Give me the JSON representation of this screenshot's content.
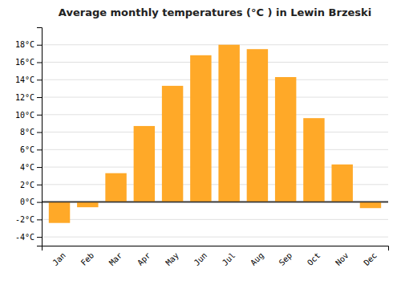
{
  "chart_data": {
    "type": "bar",
    "title": "Average monthly temperatures (°C ) in Lewin Brzeski",
    "categories": [
      "Jan",
      "Feb",
      "Mar",
      "Apr",
      "May",
      "Jun",
      "Jul",
      "Aug",
      "Sep",
      "Oct",
      "Nov",
      "Dec"
    ],
    "values": [
      -2.4,
      -0.6,
      3.3,
      8.7,
      13.3,
      16.8,
      18.0,
      17.5,
      14.3,
      9.6,
      4.3,
      -0.7
    ],
    "color": "#FFA928",
    "ylim": [
      -5,
      20
    ],
    "yticks": [
      {
        "value": -4,
        "label": "-4°C"
      },
      {
        "value": -2,
        "label": "-2°C"
      },
      {
        "value": 0,
        "label": "0°C"
      },
      {
        "value": 2,
        "label": "2°C"
      },
      {
        "value": 4,
        "label": "4°C"
      },
      {
        "value": 6,
        "label": "6°C"
      },
      {
        "value": 8,
        "label": "8°C"
      },
      {
        "value": 10,
        "label": "10°C"
      },
      {
        "value": 12,
        "label": "12°C"
      },
      {
        "value": 14,
        "label": "14°C"
      },
      {
        "value": 16,
        "label": "16°C"
      },
      {
        "value": 18,
        "label": "18°C"
      }
    ],
    "grid": true
  }
}
